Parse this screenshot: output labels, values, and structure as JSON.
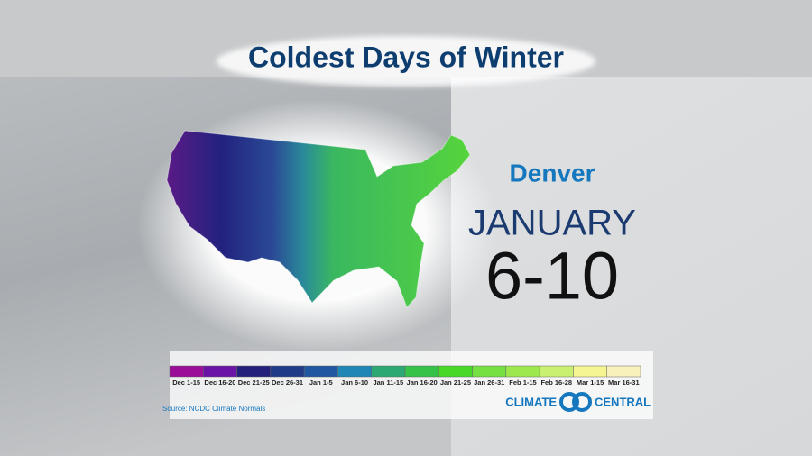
{
  "title": "Coldest Days of Winter",
  "city": "Denver",
  "month": "JANUARY",
  "days": "6-10",
  "legend": {
    "items": [
      {
        "label": "Dec 1-15",
        "color": "#9a0f98"
      },
      {
        "label": "Dec 16-20",
        "color": "#6a14a6"
      },
      {
        "label": "Dec 21-25",
        "color": "#22207a"
      },
      {
        "label": "Dec 26-31",
        "color": "#203c88"
      },
      {
        "label": "Jan 1-5",
        "color": "#2057a0"
      },
      {
        "label": "Jan 6-10",
        "color": "#1f86b6"
      },
      {
        "label": "Jan 11-15",
        "color": "#2ca872"
      },
      {
        "label": "Jan 16-20",
        "color": "#36c248"
      },
      {
        "label": "Jan 21-25",
        "color": "#47d828"
      },
      {
        "label": "Jan 26-31",
        "color": "#74e042"
      },
      {
        "label": "Feb 1-15",
        "color": "#9de84c"
      },
      {
        "label": "Feb 16-28",
        "color": "#caf072"
      },
      {
        "label": "Mar 1-15",
        "color": "#f5f592"
      },
      {
        "label": "Mar 16-31",
        "color": "#f8f1bc"
      }
    ]
  },
  "source": "Source: NCDC Climate Normals",
  "logo": {
    "left": "CLIMATE",
    "right": "CENTRAL"
  }
}
